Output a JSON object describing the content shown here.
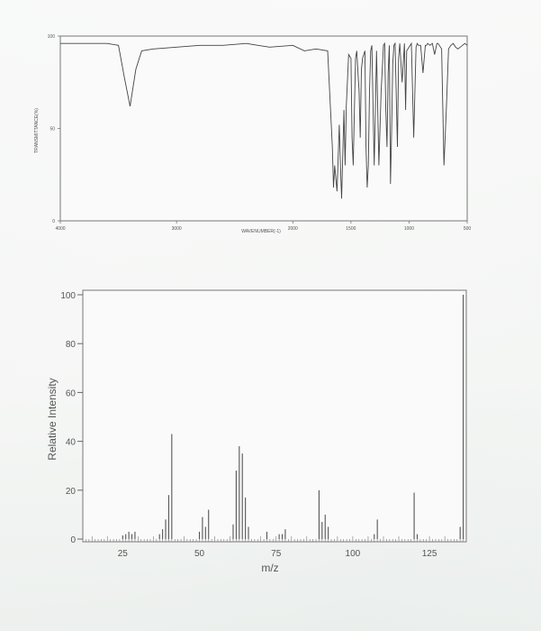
{
  "chart_data": [
    {
      "type": "line",
      "title": "",
      "xlabel": "WAVENUMBER(-1)",
      "ylabel": "TRANSMITTANCE(%)",
      "xlim": [
        4000,
        500
      ],
      "ylim": [
        0,
        100
      ],
      "x_ticks": [
        "4000",
        "3000",
        "2000",
        "1500",
        "1000",
        "500"
      ],
      "y_ticks": [
        "100",
        "50",
        "0"
      ],
      "x": [
        4000,
        3600,
        3500,
        3450,
        3400,
        3350,
        3300,
        3200,
        3000,
        2800,
        2600,
        2400,
        2300,
        2200,
        2000,
        1900,
        1800,
        1700,
        1660,
        1650,
        1640,
        1620,
        1600,
        1590,
        1580,
        1560,
        1550,
        1540,
        1520,
        1500,
        1490,
        1480,
        1470,
        1460,
        1450,
        1430,
        1420,
        1410,
        1400,
        1380,
        1370,
        1360,
        1350,
        1340,
        1330,
        1320,
        1300,
        1290,
        1280,
        1260,
        1240,
        1220,
        1210,
        1200,
        1190,
        1180,
        1170,
        1160,
        1150,
        1140,
        1130,
        1120,
        1100,
        1090,
        1080,
        1060,
        1040,
        1030,
        1020,
        1000,
        980,
        960,
        940,
        930,
        920,
        900,
        880,
        860,
        850,
        840,
        820,
        800,
        780,
        760,
        750,
        740,
        720,
        700,
        680,
        660,
        640,
        620,
        600,
        580,
        560,
        540,
        520,
        500
      ],
      "y": [
        96,
        96,
        95,
        78,
        62,
        82,
        92,
        93,
        94,
        95,
        95,
        96,
        95,
        94,
        95,
        92,
        93,
        92,
        40,
        18,
        30,
        16,
        52,
        30,
        12,
        60,
        30,
        62,
        90,
        88,
        45,
        30,
        60,
        88,
        92,
        70,
        45,
        82,
        88,
        92,
        40,
        18,
        30,
        70,
        92,
        95,
        30,
        60,
        92,
        30,
        70,
        95,
        96,
        60,
        40,
        80,
        95,
        20,
        50,
        85,
        95,
        96,
        40,
        88,
        96,
        75,
        96,
        60,
        92,
        94,
        96,
        45,
        94,
        96,
        95,
        95,
        80,
        95,
        95,
        96,
        95,
        96,
        90,
        96,
        96,
        95,
        93,
        30,
        60,
        93,
        95,
        96,
        94,
        93,
        94,
        95,
        96,
        95
      ]
    },
    {
      "type": "bar",
      "title": "",
      "xlabel": "m/z",
      "ylabel": "Relative Intensity",
      "xlim": [
        12,
        137
      ],
      "ylim": [
        0,
        100
      ],
      "x_ticks": [
        "25",
        "50",
        "75",
        "100",
        "125"
      ],
      "y_ticks": [
        "0",
        "20",
        "40",
        "60",
        "80",
        "100"
      ],
      "x": [
        25,
        26,
        27,
        28,
        29,
        37,
        38,
        39,
        40,
        41,
        50,
        51,
        52,
        53,
        61,
        62,
        63,
        64,
        65,
        66,
        72,
        76,
        77,
        78,
        89,
        90,
        91,
        92,
        107,
        108,
        120,
        121,
        135,
        136
      ],
      "values": [
        1.5,
        2,
        3,
        2,
        3,
        2,
        4,
        8,
        18,
        43,
        3,
        9,
        5,
        12,
        6,
        28,
        38,
        35,
        17,
        5,
        3,
        2,
        2,
        4,
        20,
        7,
        10,
        5,
        2,
        8,
        19,
        2,
        5,
        100
      ]
    }
  ]
}
